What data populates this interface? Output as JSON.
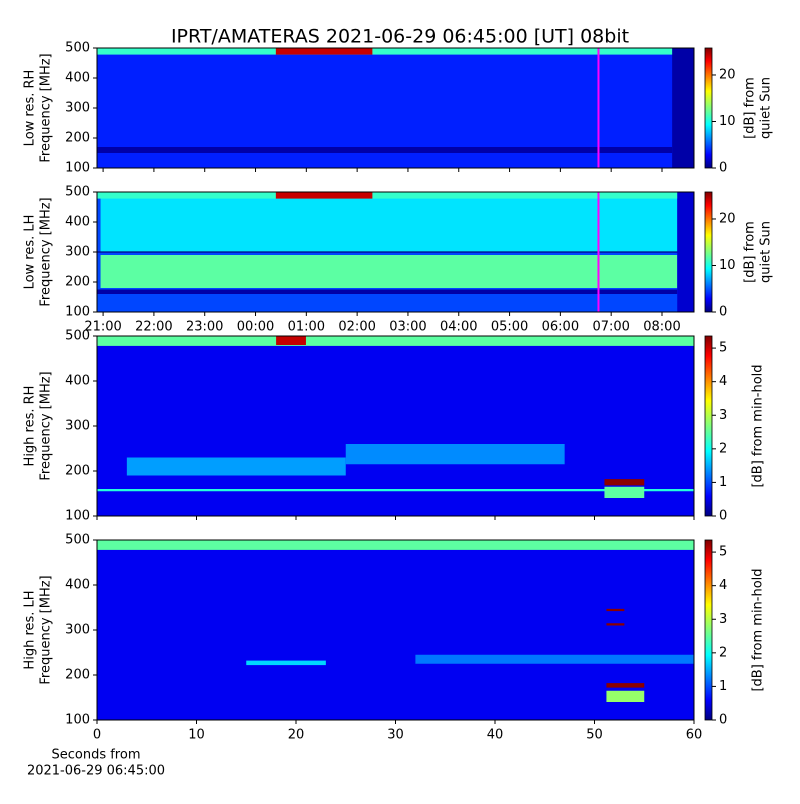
{
  "title": "IPRT/AMATERAS 2021-06-29 06:45:00 [UT]   08bit",
  "chart_data": [
    {
      "type": "heatmap",
      "ylabel": [
        "Low res. RH",
        "Frequency [MHz]"
      ],
      "xlim": [
        20.88,
        32.63
      ],
      "ylim": [
        100,
        500
      ],
      "yticks": [
        100,
        200,
        300,
        400,
        500
      ],
      "colorbar": {
        "label": [
          "[dB] from",
          "quiet Sun"
        ],
        "lim": [
          0,
          25.8
        ],
        "ticks": [
          0,
          10,
          20
        ]
      },
      "cells": [
        {
          "x": [
            20.88,
            32.63
          ],
          "y": [
            100,
            500
          ],
          "value": 4
        },
        {
          "x": [
            20.88,
            32.2
          ],
          "y": [
            150,
            170
          ],
          "value": 1
        },
        {
          "x": [
            20.88,
            32.63
          ],
          "y": [
            478,
            500
          ],
          "value": 11
        },
        {
          "x": [
            24.4,
            26.3
          ],
          "y": [
            478,
            500
          ],
          "value": 24
        },
        {
          "x": [
            32.2,
            32.63
          ],
          "y": [
            100,
            500
          ],
          "value": 1
        }
      ],
      "marker": {
        "x": 30.75,
        "color": "#ff00ff"
      }
    },
    {
      "type": "heatmap",
      "ylabel": [
        "Low res. LH",
        "Frequency [MHz]"
      ],
      "xlim": [
        20.88,
        32.63
      ],
      "ylim": [
        100,
        500
      ],
      "yticks": [
        100,
        200,
        300,
        400,
        500
      ],
      "xticks": [
        {
          "value": 21,
          "label": "21:00"
        },
        {
          "value": 22,
          "label": "22:00"
        },
        {
          "value": 23,
          "label": "23:00"
        },
        {
          "value": 24,
          "label": "00:00"
        },
        {
          "value": 25,
          "label": "01:00"
        },
        {
          "value": 26,
          "label": "02:00"
        },
        {
          "value": 27,
          "label": "03:00"
        },
        {
          "value": 28,
          "label": "04:00"
        },
        {
          "value": 29,
          "label": "05:00"
        },
        {
          "value": 30,
          "label": "06:00"
        },
        {
          "value": 31,
          "label": "07:00"
        },
        {
          "value": 32,
          "label": "08:00"
        }
      ],
      "colorbar": {
        "label": [
          "[dB] from",
          "quiet Sun"
        ],
        "lim": [
          0,
          25.8
        ],
        "ticks": [
          0,
          10,
          20
        ]
      },
      "cells": [
        {
          "x": [
            20.88,
            32.63
          ],
          "y": [
            100,
            500
          ],
          "value": 5
        },
        {
          "x": [
            20.95,
            32.3
          ],
          "y": [
            300,
            480
          ],
          "value": 9
        },
        {
          "x": [
            20.95,
            32.3
          ],
          "y": [
            180,
            290
          ],
          "value": 12
        },
        {
          "x": [
            20.88,
            32.63
          ],
          "y": [
            298,
            302
          ],
          "value": 0
        },
        {
          "x": [
            20.88,
            32.3
          ],
          "y": [
            160,
            175
          ],
          "value": 1
        },
        {
          "x": [
            20.88,
            32.63
          ],
          "y": [
            478,
            500
          ],
          "value": 11
        },
        {
          "x": [
            24.4,
            26.3
          ],
          "y": [
            478,
            500
          ],
          "value": 24
        },
        {
          "x": [
            32.3,
            32.63
          ],
          "y": [
            100,
            500
          ],
          "value": 2
        }
      ],
      "marker": {
        "x": 30.75,
        "color": "#ff00ff"
      }
    },
    {
      "type": "heatmap",
      "ylabel": [
        "High res. RH",
        "Frequency [MHz]"
      ],
      "xlim": [
        0,
        60
      ],
      "ylim": [
        100,
        500
      ],
      "yticks": [
        100,
        200,
        300,
        400,
        500
      ],
      "colorbar": {
        "label": [
          "[dB] from min-hold"
        ],
        "lim": [
          0,
          5.36
        ],
        "ticks": [
          0,
          1,
          2,
          3,
          4,
          5
        ]
      },
      "cells": [
        {
          "x": [
            0,
            60
          ],
          "y": [
            100,
            500
          ],
          "value": 0.6
        },
        {
          "x": [
            0,
            60
          ],
          "y": [
            478,
            500
          ],
          "value": 2.5
        },
        {
          "x": [
            18,
            21
          ],
          "y": [
            480,
            500
          ],
          "value": 5
        },
        {
          "x": [
            3,
            25
          ],
          "y": [
            190,
            230
          ],
          "value": 1.5
        },
        {
          "x": [
            25,
            47
          ],
          "y": [
            215,
            260
          ],
          "value": 1.4
        },
        {
          "x": [
            0,
            60
          ],
          "y": [
            155,
            160
          ],
          "value": 2.2
        },
        {
          "x": [
            51,
            55
          ],
          "y": [
            168,
            182
          ],
          "value": 5.3
        },
        {
          "x": [
            51,
            55
          ],
          "y": [
            140,
            165
          ],
          "value": 2.5
        }
      ]
    },
    {
      "type": "heatmap",
      "ylabel": [
        "High res. LH",
        "Frequency [MHz]"
      ],
      "xlim": [
        0,
        60
      ],
      "ylim": [
        100,
        500
      ],
      "yticks": [
        100,
        200,
        300,
        400,
        500
      ],
      "xticks": [
        0,
        10,
        20,
        30,
        40,
        50,
        60
      ],
      "xlabel": [
        "Seconds from",
        "2021-06-29 06:45:00"
      ],
      "colorbar": {
        "label": [
          "[dB] from min-hold"
        ],
        "lim": [
          0,
          5.36
        ],
        "ticks": [
          0,
          1,
          2,
          3,
          4,
          5
        ]
      },
      "cells": [
        {
          "x": [
            0,
            60
          ],
          "y": [
            100,
            500
          ],
          "value": 0.6
        },
        {
          "x": [
            0,
            60
          ],
          "y": [
            478,
            500
          ],
          "value": 2.5
        },
        {
          "x": [
            15,
            23
          ],
          "y": [
            222,
            232
          ],
          "value": 1.8
        },
        {
          "x": [
            32,
            60
          ],
          "y": [
            225,
            245
          ],
          "value": 1.3
        },
        {
          "x": [
            51.2,
            53
          ],
          "y": [
            342,
            347
          ],
          "value": 5.3
        },
        {
          "x": [
            51.2,
            53
          ],
          "y": [
            310,
            315
          ],
          "value": 5.3
        },
        {
          "x": [
            51.2,
            55
          ],
          "y": [
            172,
            182
          ],
          "value": 5.3
        },
        {
          "x": [
            51.2,
            55
          ],
          "y": [
            140,
            165
          ],
          "value": 2.8
        }
      ]
    }
  ]
}
